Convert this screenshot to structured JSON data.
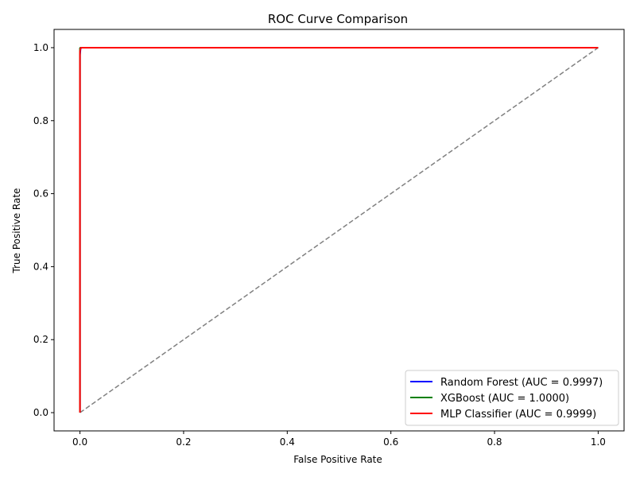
{
  "chart_data": {
    "type": "line",
    "title": "ROC Curve Comparison",
    "xlabel": "False Positive Rate",
    "ylabel": "True Positive Rate",
    "xlim": [
      -0.05,
      1.05
    ],
    "ylim": [
      -0.05,
      1.05
    ],
    "xticks": [
      0.0,
      0.2,
      0.4,
      0.6,
      0.8,
      1.0
    ],
    "yticks": [
      0.0,
      0.2,
      0.4,
      0.6,
      0.8,
      1.0
    ],
    "xtick_labels": [
      "0.0",
      "0.2",
      "0.4",
      "0.6",
      "0.8",
      "1.0"
    ],
    "ytick_labels": [
      "0.0",
      "0.2",
      "0.4",
      "0.6",
      "0.8",
      "1.0"
    ],
    "grid": false,
    "legend_position": "lower right",
    "series": [
      {
        "name": "Random Forest (AUC = 0.9997)",
        "color": "#0000ff",
        "x": [
          0.0,
          0.0,
          0.001,
          0.002,
          1.0
        ],
        "y": [
          0.0,
          0.98,
          0.995,
          1.0,
          1.0
        ]
      },
      {
        "name": "XGBoost (AUC = 1.0000)",
        "color": "#008000",
        "x": [
          0.0,
          0.0,
          0.001,
          1.0
        ],
        "y": [
          0.0,
          0.999,
          1.0,
          1.0
        ]
      },
      {
        "name": "MLP Classifier (AUC = 0.9999)",
        "color": "#ff0000",
        "x": [
          0.0,
          0.0,
          0.001,
          0.002,
          1.0
        ],
        "y": [
          0.0,
          0.99,
          0.998,
          1.0,
          1.0
        ]
      }
    ],
    "reference_line": {
      "color": "#808080",
      "style": "dashed",
      "x": [
        0.0,
        1.0
      ],
      "y": [
        0.0,
        1.0
      ]
    }
  }
}
